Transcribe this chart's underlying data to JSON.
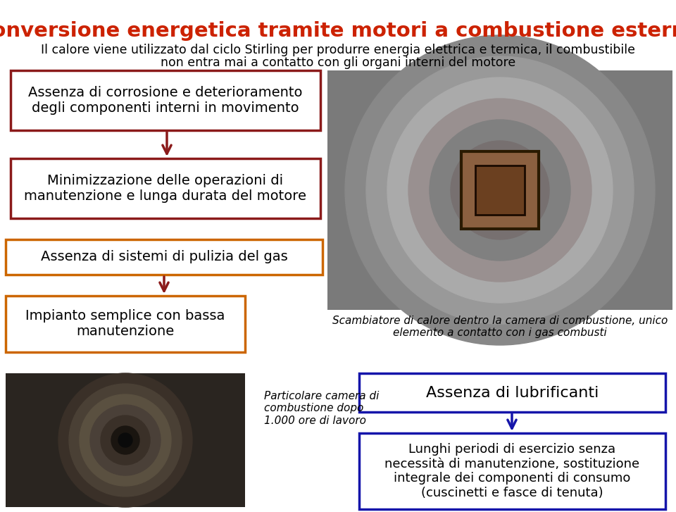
{
  "title": "Conversione energetica tramite motori a combustione esterna",
  "subtitle_line1": "Il calore viene utilizzato dal ciclo Stirling per produrre energia elettrica e termica, il combustibile",
  "subtitle_line2": "non entra mai a contatto con gli organi interni del motore",
  "title_color": "#CC2200",
  "subtitle_color": "#000000",
  "bg_color": "#FFFFFF",
  "box1_text": "Assenza di corrosione e deterioramento\ndegli componenti interni in movimento",
  "box1_border": "#8B1A1A",
  "box2_text": "Minimizzazione delle operazioni di\nmanutenzione e lunga durata del motore",
  "box2_border": "#8B1A1A",
  "box3_text": "Assenza di sistemi di pulizia del gas",
  "box3_border": "#CC6600",
  "box4_text": "Impianto semplice con bassa\nmanutenzione",
  "box4_border": "#CC6600",
  "arrow_color_red": "#8B1A1A",
  "arrow_color_blue": "#1515AA",
  "scambiatore_text": "Scambiatore di calore dentro la camera di combustione, unico\nelemento a contatto con i gas combusti",
  "particolare_text": "Particolare camera di\ncombustione dopo\n1.000 ore di lavoro",
  "lubrificanti_text": "Assenza di lubrificanti",
  "lubrificanti_border": "#1515AA",
  "box_long_text": "Lunghi periodi di esercizio senza\nnecessità di manutenzione, sostituzione\nintegrale dei componenti di consumo\n(cuscinetti e fasce di tenuta)",
  "box_long_border": "#1515AA",
  "text_color": "#000000"
}
